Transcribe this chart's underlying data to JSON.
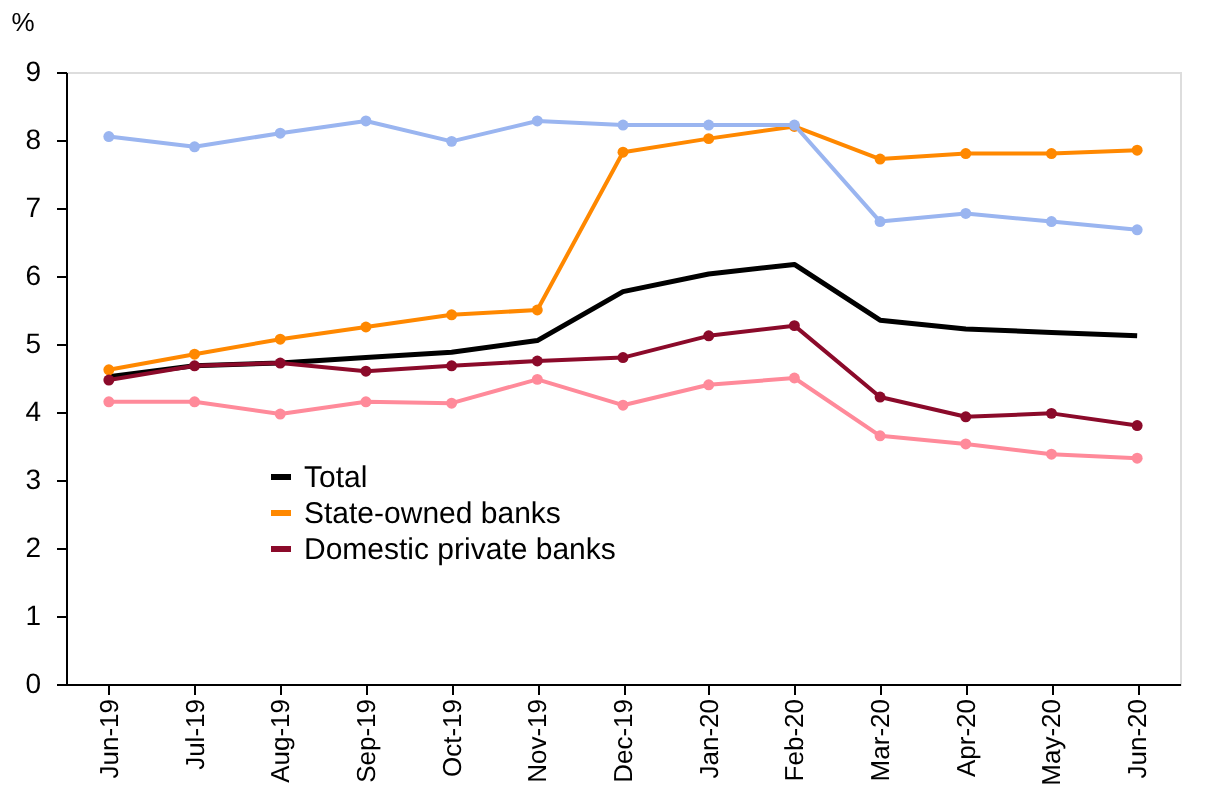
{
  "chart_data": {
    "type": "line",
    "ylabel": "%",
    "categories": [
      "Jun-19",
      "Jul-19",
      "Aug-19",
      "Sep-19",
      "Oct-19",
      "Nov-19",
      "Dec-19",
      "Jan-20",
      "Feb-20",
      "Mar-20",
      "Apr-20",
      "May-20",
      "Jun-20"
    ],
    "series": [
      {
        "color": "#9ab5f0",
        "marker": "circle",
        "values": [
          8.05,
          7.9,
          8.1,
          8.28,
          7.98,
          8.28,
          8.22,
          8.22,
          8.22,
          6.8,
          6.92,
          6.8,
          6.68
        ]
      },
      {
        "name": "Total",
        "color": "#000000",
        "marker": "none",
        "values": [
          4.52,
          4.68,
          4.72,
          4.8,
          4.88,
          5.05,
          5.77,
          6.03,
          6.17,
          5.35,
          5.22,
          5.17,
          5.12
        ]
      },
      {
        "name": "State-owned banks",
        "color": "#ff8800",
        "marker": "circle",
        "values": [
          4.62,
          4.85,
          5.07,
          5.25,
          5.43,
          5.5,
          7.82,
          8.02,
          8.2,
          7.72,
          7.8,
          7.8,
          7.85
        ]
      },
      {
        "name": "Domestic private banks",
        "color": "#8b0a2a",
        "marker": "circle",
        "values": [
          4.47,
          4.68,
          4.72,
          4.6,
          4.68,
          4.75,
          4.8,
          5.12,
          5.27,
          4.22,
          3.93,
          3.98,
          3.8
        ]
      },
      {
        "color": "#ff8a9a",
        "marker": "circle",
        "values": [
          4.15,
          4.15,
          3.97,
          4.15,
          4.13,
          4.48,
          4.1,
          4.4,
          4.5,
          3.65,
          3.53,
          3.38,
          3.32
        ]
      }
    ],
    "ylim": [
      0,
      9
    ],
    "yticks": [
      0,
      1,
      2,
      3,
      4,
      5,
      6,
      7,
      8,
      9
    ],
    "grid": false,
    "legend": "bottom left"
  }
}
